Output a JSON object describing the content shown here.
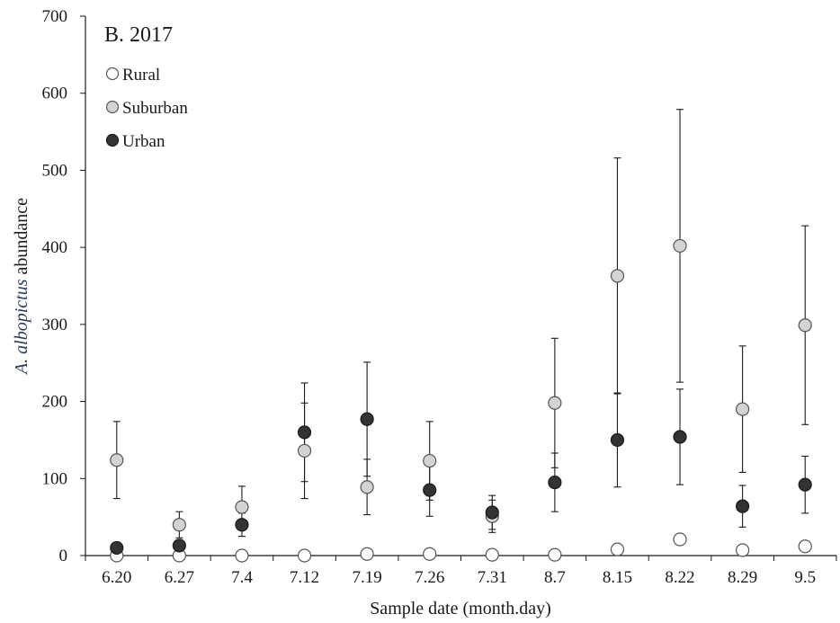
{
  "chart_data": {
    "type": "scatter",
    "title": "B. 2017",
    "xlabel": "Sample date (month.day)",
    "ylabel_italic": "A. albopictus",
    "ylabel_rest": " abundance",
    "categories": [
      "6.20",
      "6.27",
      "7.4",
      "7.12",
      "7.19",
      "7.26",
      "7.31",
      "8.7",
      "8.15",
      "8.22",
      "8.29",
      "9.5"
    ],
    "ylim": [
      0,
      700
    ],
    "yticks": [
      "0",
      "100",
      "200",
      "300",
      "400",
      "500",
      "600",
      "700"
    ],
    "grid": false,
    "legend_position": "top-left",
    "series": [
      {
        "name": "Rural",
        "color": "#ffffff",
        "values": [
          0,
          0,
          0,
          0,
          2,
          2,
          1,
          1,
          8,
          21,
          7,
          12
        ],
        "err": [
          0,
          0,
          0,
          0,
          2,
          2,
          1,
          1,
          5,
          5,
          4,
          5
        ]
      },
      {
        "name": "Suburban",
        "color": "#d3d3d3",
        "values": [
          124,
          40,
          63,
          136,
          89,
          123,
          51,
          198,
          363,
          402,
          190,
          299
        ],
        "err": [
          50,
          17,
          27,
          62,
          36,
          51,
          21,
          84,
          153,
          177,
          82,
          129
        ]
      },
      {
        "name": "Urban",
        "color": "#333333",
        "values": [
          10,
          13,
          40,
          160,
          177,
          85,
          56,
          95,
          150,
          154,
          64,
          92
        ],
        "err": [
          0,
          0,
          15,
          64,
          74,
          34,
          22,
          38,
          61,
          62,
          27,
          37
        ]
      }
    ]
  }
}
